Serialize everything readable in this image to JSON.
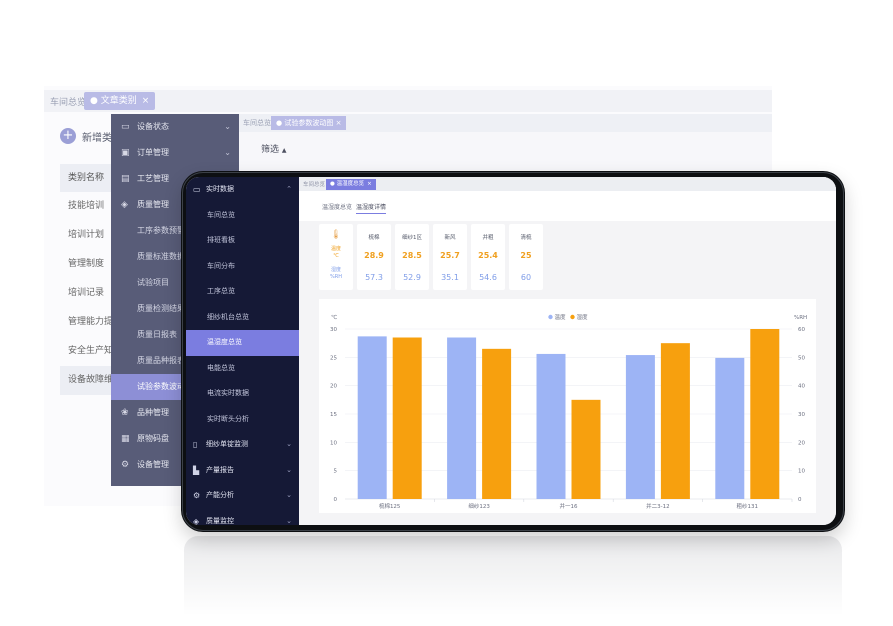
{
  "back_window": {
    "tab_plain": "车间总览",
    "tab_active": "文章类别",
    "tab_close": "×",
    "add_button_label": "新增类别",
    "category_list": {
      "header": "类别名称",
      "items": [
        "技能培训",
        "培训计划",
        "管理制度",
        "培训记录",
        "管理能力提升",
        "安全生产知识",
        "设备故障维护"
      ]
    }
  },
  "middle_window": {
    "tab_plain": "车间总览",
    "tab_active": "试验参数波动图",
    "filter_label": "筛选",
    "filter_caret": "▲",
    "sidebar": [
      {
        "label": "设备状态",
        "icon": "monitor-icon",
        "type": "group"
      },
      {
        "label": "订单管理",
        "icon": "clipboard-icon",
        "type": "group"
      },
      {
        "label": "工艺管理",
        "icon": "document-icon",
        "type": "group"
      },
      {
        "label": "质量管理",
        "icon": "shield-icon",
        "type": "group"
      },
      {
        "label": "工序参数预警",
        "type": "sub"
      },
      {
        "label": "质量标准数据管理",
        "type": "sub"
      },
      {
        "label": "试验项目",
        "type": "sub"
      },
      {
        "label": "质量检测结果管理",
        "type": "sub"
      },
      {
        "label": "质量日报表",
        "type": "sub"
      },
      {
        "label": "质量品种报表",
        "type": "sub"
      },
      {
        "label": "试验参数波动图",
        "type": "sub",
        "selected": true
      },
      {
        "label": "品种管理",
        "icon": "variety-icon",
        "type": "group"
      },
      {
        "label": "原物码盘",
        "icon": "box-icon",
        "type": "group"
      },
      {
        "label": "设备管理",
        "icon": "gear-icon",
        "type": "group"
      }
    ]
  },
  "front_screen": {
    "tab_plain": "车间总览",
    "tab_active": "温湿度总览",
    "tab_close": "×",
    "subtabs": [
      "温湿度总览",
      "温湿度详情"
    ],
    "active_subtab": "温湿度详情",
    "sidebar": [
      {
        "label": "实时数据",
        "icon": "monitor-icon",
        "type": "group",
        "chevron": "⌃"
      },
      {
        "label": "车间总览",
        "type": "sub"
      },
      {
        "label": "排班看板",
        "type": "sub"
      },
      {
        "label": "车间分布",
        "type": "sub"
      },
      {
        "label": "工序总览",
        "type": "sub"
      },
      {
        "label": "细纱机台总览",
        "type": "sub"
      },
      {
        "label": "温湿度总览",
        "type": "sub",
        "selected": true
      },
      {
        "label": "电能总览",
        "type": "sub"
      },
      {
        "label": "电流实时数据",
        "type": "sub"
      },
      {
        "label": "实时断头分析",
        "type": "sub"
      },
      {
        "label": "细纱单锭监测",
        "icon": "phone-icon",
        "type": "group",
        "chevron": "⌄"
      },
      {
        "label": "产量报告",
        "icon": "bar-chart-icon",
        "type": "group",
        "chevron": "⌄"
      },
      {
        "label": "产能分析",
        "icon": "gear-icon",
        "type": "group",
        "chevron": "⌄"
      },
      {
        "label": "质量监控",
        "icon": "shield-icon",
        "type": "group",
        "chevron": "⌄"
      }
    ],
    "legend_card": {
      "temp_label": "温度",
      "temp_unit": "℃",
      "hum_label": "湿度",
      "hum_unit": "%RH",
      "icon": "thermometer-icon"
    },
    "cards": [
      {
        "name": "梳棉",
        "temp": "28.9",
        "hum": "57.3"
      },
      {
        "name": "细纱1区",
        "temp": "28.5",
        "hum": "52.9"
      },
      {
        "name": "新风",
        "temp": "25.7",
        "hum": "35.1"
      },
      {
        "name": "并粗",
        "temp": "25.4",
        "hum": "54.6"
      },
      {
        "name": "清梳",
        "temp": "25",
        "hum": "60"
      }
    ],
    "colors": {
      "temp": "#f7a00e",
      "hum": "#9db4f5",
      "accent": "#7b7de0"
    }
  },
  "chart_data": {
    "type": "bar",
    "categories": [
      "梳棉125",
      "细纱123",
      "并一16",
      "并二3-12",
      "粗纱131"
    ],
    "series": [
      {
        "name": "温度",
        "axis": "left",
        "values": [
          28.7,
          28.5,
          25.6,
          25.4,
          24.9
        ]
      },
      {
        "name": "湿度",
        "axis": "right",
        "values": [
          57,
          53,
          35,
          55,
          60
        ]
      }
    ],
    "ylabel_left": "℃",
    "ylabel_right": "%RH",
    "ylim_left": [
      0,
      30
    ],
    "ylim_right": [
      0,
      60
    ],
    "yticks_left": [
      "0",
      "5",
      "10",
      "15",
      "20",
      "25",
      "30"
    ],
    "yticks_right": [
      "0",
      "10",
      "20",
      "30",
      "40",
      "50",
      "60"
    ],
    "legend_position": "top-center",
    "grid": true
  }
}
